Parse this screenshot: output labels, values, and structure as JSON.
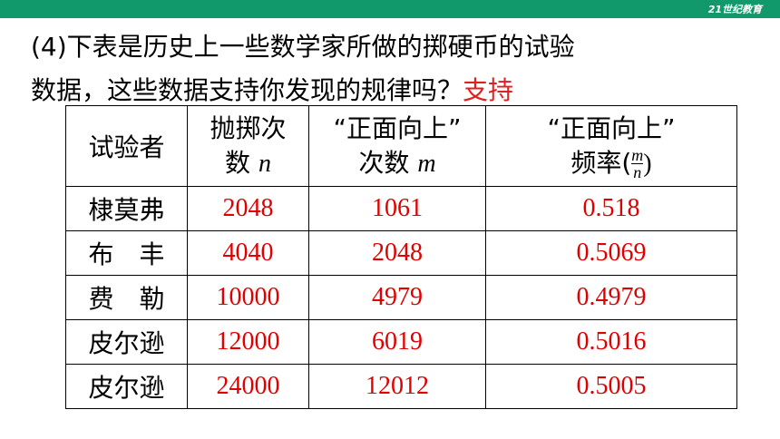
{
  "logo": "21世纪教育",
  "question": {
    "lines": [
      "(4)下表是历史上一些数学家所做的掷硬币的试验",
      "数据，这些数据支持你发现的规律吗？"
    ],
    "answer": "支持"
  },
  "table": {
    "header": [
      {
        "lines": [
          "试验者"
        ]
      },
      {
        "lines": [
          "抛掷次",
          "数"
        ],
        "var": "n"
      },
      {
        "lines": [
          "“正面向上”",
          "次数"
        ],
        "var": "m"
      },
      {
        "lines": [
          "“正面向上”",
          "频率("
        ],
        "numerator": "m",
        "denominator": "n",
        "close": ")"
      }
    ],
    "rows": [
      [
        "棣莫弗",
        2048,
        1061,
        0.518
      ],
      [
        "布　丰",
        4040,
        2048,
        0.5069
      ],
      [
        "费　勒",
        10000,
        4979,
        0.4979
      ],
      [
        "皮尔逊",
        12000,
        6019,
        0.5016
      ],
      [
        "皮尔逊",
        24000,
        12012,
        0.5005
      ]
    ]
  }
}
